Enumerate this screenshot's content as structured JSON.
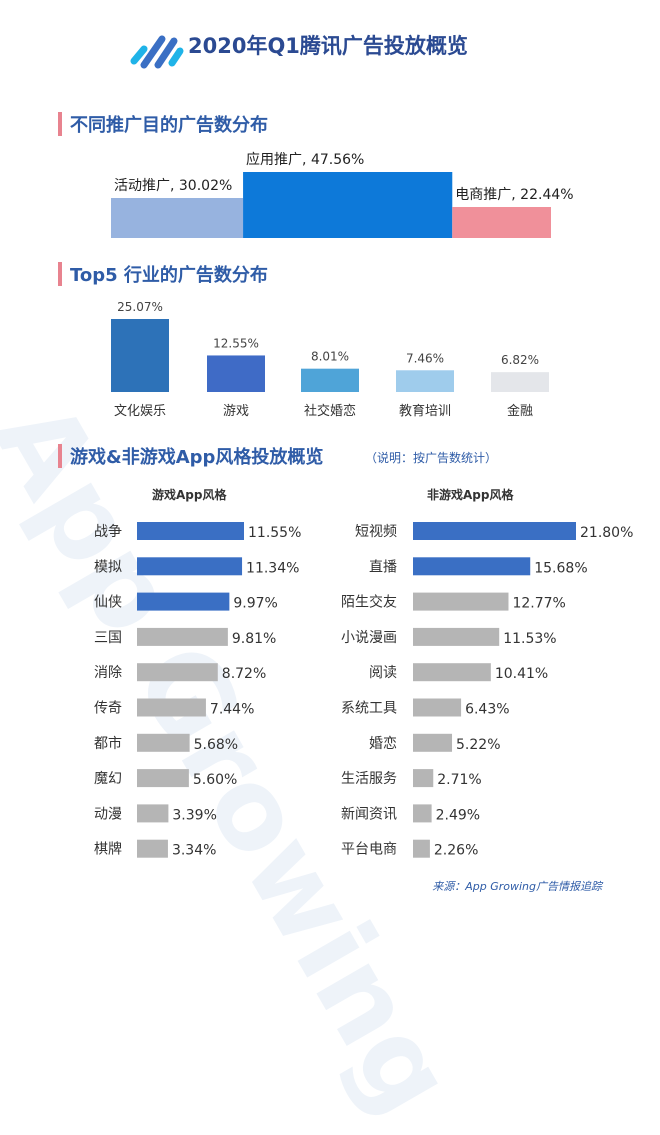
{
  "header": {
    "title": "2020年Q1腾讯广告投放概览",
    "logo_icon": "stripes-logo-icon"
  },
  "sections": {
    "purpose": {
      "title": "不同推广目的广告数分布"
    },
    "industry": {
      "title": "Top5 行业的广告数分布"
    },
    "style": {
      "title": "游戏&非游戏App风格投放概览",
      "note": "（说明：按广告数统计）"
    }
  },
  "watermark": "App Growing",
  "source": "来源：App Growing广告情报追踪",
  "colors": {
    "dark_blue": "#3a6fc4",
    "pink": "#e8838f",
    "light_blue": "#8fb0de",
    "mid_blue": "#0d79d9",
    "light_pink": "#f0909a",
    "gray_bar": "#b5b5b5",
    "title_blue": "#2f5ca7"
  },
  "chart_data": [
    {
      "type": "bar",
      "title": "不同推广目的广告数分布",
      "categories": [
        "活动推广",
        "应用推广",
        "电商推广"
      ],
      "values": [
        30.02,
        47.56,
        22.44
      ],
      "labels": [
        "活动推广, 30.02%",
        "应用推广, 47.56%",
        "电商推广, 22.44%"
      ],
      "colors": [
        "#97b3df",
        "#0d79d9",
        "#f0909a"
      ],
      "unit": "%"
    },
    {
      "type": "bar",
      "title": "Top5 行业的广告数分布",
      "categories": [
        "文化娱乐",
        "游戏",
        "社交婚恋",
        "教育培训",
        "金融"
      ],
      "values": [
        25.07,
        12.55,
        8.01,
        7.46,
        6.82
      ],
      "labels": [
        "25.07%",
        "12.55%",
        "8.01%",
        "7.46%",
        "6.82%"
      ],
      "colors": [
        "#2d72b8",
        "#3f6bc6",
        "#4fa4d8",
        "#9fccec",
        "#e4e6ea"
      ],
      "unit": "%"
    },
    {
      "type": "bar",
      "title": "游戏App风格",
      "categories": [
        "战争",
        "模拟",
        "仙侠",
        "三国",
        "消除",
        "传奇",
        "都市",
        "魔幻",
        "动漫",
        "棋牌"
      ],
      "values": [
        11.55,
        11.34,
        9.97,
        9.81,
        8.72,
        7.44,
        5.68,
        5.6,
        3.39,
        3.34
      ],
      "labels": [
        "11.55%",
        "11.34%",
        "9.97%",
        "9.81%",
        "8.72%",
        "7.44%",
        "5.68%",
        "5.60%",
        "3.39%",
        "3.34%"
      ],
      "highlight_count": 3,
      "unit": "%"
    },
    {
      "type": "bar",
      "title": "非游戏App风格",
      "categories": [
        "短视频",
        "直播",
        "陌生交友",
        "小说漫画",
        "阅读",
        "系统工具",
        "婚恋",
        "生活服务",
        "新闻资讯",
        "平台电商"
      ],
      "values": [
        21.8,
        15.68,
        12.77,
        11.53,
        10.41,
        6.43,
        5.22,
        2.71,
        2.49,
        2.26
      ],
      "labels": [
        "21.80%",
        "15.68%",
        "12.77%",
        "11.53%",
        "10.41%",
        "6.43%",
        "5.22%",
        "2.71%",
        "2.49%",
        "2.26%"
      ],
      "highlight_count": 2,
      "unit": "%"
    }
  ]
}
